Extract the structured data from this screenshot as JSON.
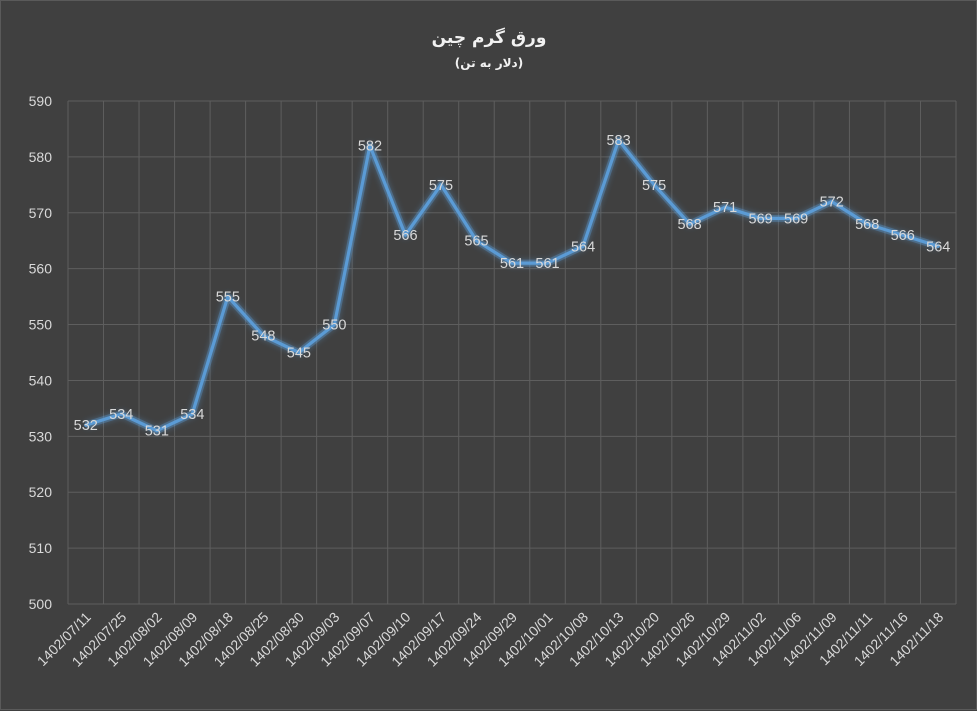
{
  "chart_data": {
    "type": "line",
    "title": "ورق گرم چین",
    "subtitle": "(دلار به تن)",
    "xlabel": "",
    "ylabel": "",
    "ylim": [
      500,
      590
    ],
    "ytick_step": 10,
    "grid": true,
    "categories": [
      "1402/07/11",
      "1402/07/25",
      "1402/08/02",
      "1402/08/09",
      "1402/08/18",
      "1402/08/25",
      "1402/08/30",
      "1402/09/03",
      "1402/09/07",
      "1402/09/10",
      "1402/09/17",
      "1402/09/24",
      "1402/09/29",
      "1402/10/01",
      "1402/10/08",
      "1402/10/13",
      "1402/10/20",
      "1402/10/26",
      "1402/10/29",
      "1402/11/02",
      "1402/11/06",
      "1402/11/09",
      "1402/11/11",
      "1402/11/16",
      "1402/11/18"
    ],
    "series": [
      {
        "values": [
          532,
          534,
          531,
          534,
          555,
          548,
          545,
          550,
          582,
          566,
          575,
          565,
          561,
          561,
          564,
          583,
          575,
          568,
          571,
          569,
          569,
          572,
          568,
          566,
          564
        ],
        "color": "#5b9bd5"
      }
    ]
  }
}
